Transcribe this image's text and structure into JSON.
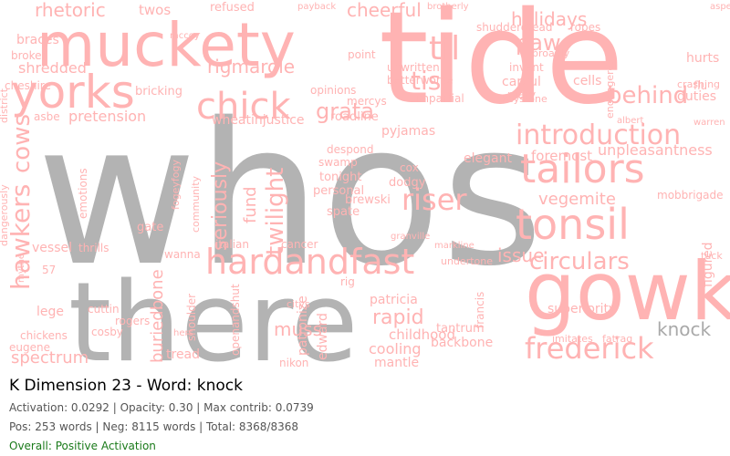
{
  "palette": {
    "positive": "#ffb3b3",
    "negative": "#b3b3b3",
    "highlight": "#a9a9a9"
  },
  "words": [
    {
      "t": "whos",
      "c": "neg"
    },
    {
      "t": "there",
      "c": "neg"
    },
    {
      "t": "tide",
      "c": "pos"
    },
    {
      "t": "gowk",
      "c": "pos"
    },
    {
      "t": "muckety",
      "c": "pos"
    },
    {
      "t": "yorks",
      "c": "pos"
    },
    {
      "t": "chick",
      "c": "pos"
    },
    {
      "t": "tailors",
      "c": "pos"
    },
    {
      "t": "tonsil",
      "c": "pos"
    },
    {
      "t": "hardandfast",
      "c": "pos"
    },
    {
      "t": "frederick",
      "c": "pos"
    },
    {
      "t": "knock",
      "c": "neg"
    },
    {
      "t": "introduction",
      "c": "pos"
    },
    {
      "t": "behind",
      "c": "pos"
    },
    {
      "t": "rhetoric",
      "c": "pos"
    },
    {
      "t": "cheerful",
      "c": "pos"
    },
    {
      "t": "twos",
      "c": "pos"
    },
    {
      "t": "refused",
      "c": "pos"
    },
    {
      "t": "holidays",
      "c": "pos"
    },
    {
      "t": "til",
      "c": "pos"
    },
    {
      "t": "paw",
      "c": "pos"
    },
    {
      "t": "shredded",
      "c": "pos"
    },
    {
      "t": "rigmarole",
      "c": "pos"
    },
    {
      "t": "tis",
      "c": "pos"
    },
    {
      "t": "grata",
      "c": "pos"
    },
    {
      "t": "vegemite",
      "c": "pos"
    },
    {
      "t": "circulars",
      "c": "pos"
    },
    {
      "t": "issue",
      "c": "pos"
    },
    {
      "t": "riser",
      "c": "pos"
    },
    {
      "t": "twilight",
      "c": "pos"
    },
    {
      "t": "seriously",
      "c": "pos"
    },
    {
      "t": "fund",
      "c": "pos"
    },
    {
      "t": "hawkers",
      "c": "pos"
    },
    {
      "t": "cows",
      "c": "pos"
    },
    {
      "t": "muss",
      "c": "pos"
    },
    {
      "t": "rapid",
      "c": "pos"
    },
    {
      "t": "buriedbone",
      "c": "pos"
    },
    {
      "t": "pretension",
      "c": "pos"
    },
    {
      "t": "bricking",
      "c": "pos"
    },
    {
      "t": "unwritten",
      "c": "pos"
    },
    {
      "t": "betterworse",
      "c": "pos"
    },
    {
      "t": "impartial",
      "c": "pos"
    },
    {
      "t": "mercys",
      "c": "pos"
    },
    {
      "t": "opinions",
      "c": "pos"
    },
    {
      "t": "roadline",
      "c": "pos"
    },
    {
      "t": "injustice",
      "c": "pos"
    },
    {
      "t": "wheat",
      "c": "pos"
    },
    {
      "t": "pyjamas",
      "c": "pos"
    },
    {
      "t": "foremost",
      "c": "pos"
    },
    {
      "t": "unpleasantness",
      "c": "pos"
    },
    {
      "t": "mobbrigade",
      "c": "pos"
    },
    {
      "t": "superiority",
      "c": "pos"
    },
    {
      "t": "childhood",
      "c": "pos"
    },
    {
      "t": "cooling",
      "c": "pos"
    },
    {
      "t": "mantle",
      "c": "pos"
    },
    {
      "t": "tantrum",
      "c": "pos"
    },
    {
      "t": "backbone",
      "c": "pos"
    },
    {
      "t": "cancer",
      "c": "pos"
    },
    {
      "t": "italian",
      "c": "pos"
    },
    {
      "t": "wanna",
      "c": "pos"
    },
    {
      "t": "gate",
      "c": "pos"
    },
    {
      "t": "emotions",
      "c": "pos"
    },
    {
      "t": "vessel",
      "c": "pos"
    },
    {
      "t": "thrills",
      "c": "pos"
    },
    {
      "t": "spectrum",
      "c": "pos"
    },
    {
      "t": "chickens",
      "c": "pos"
    },
    {
      "t": "lege",
      "c": "pos"
    },
    {
      "t": "cuttin",
      "c": "pos"
    },
    {
      "t": "rogers",
      "c": "pos"
    },
    {
      "t": "tread",
      "c": "pos"
    },
    {
      "t": "openandshut",
      "c": "pos"
    },
    {
      "t": "shoulder",
      "c": "pos"
    },
    {
      "t": "cosby",
      "c": "pos"
    },
    {
      "t": "eugene",
      "c": "pos"
    },
    {
      "t": "patronize",
      "c": "pos"
    },
    {
      "t": "edward",
      "c": "pos"
    },
    {
      "t": "patricia",
      "c": "pos"
    },
    {
      "t": "francis",
      "c": "pos"
    },
    {
      "t": "imitates",
      "c": "pos"
    },
    {
      "t": "fatrag",
      "c": "pos"
    },
    {
      "t": "figured",
      "c": "pos"
    },
    {
      "t": "duties",
      "c": "pos"
    },
    {
      "t": "crashing",
      "c": "pos"
    },
    {
      "t": "hurts",
      "c": "pos"
    },
    {
      "t": "elegant",
      "c": "pos"
    },
    {
      "t": "tonight",
      "c": "pos"
    },
    {
      "t": "personal",
      "c": "pos"
    },
    {
      "t": "brewski",
      "c": "pos"
    },
    {
      "t": "spate",
      "c": "pos"
    },
    {
      "t": "dodgy",
      "c": "pos"
    },
    {
      "t": "cox",
      "c": "pos"
    },
    {
      "t": "swamp",
      "c": "pos"
    },
    {
      "t": "despond",
      "c": "pos"
    },
    {
      "t": "granville",
      "c": "pos"
    },
    {
      "t": "markline",
      "c": "pos"
    },
    {
      "t": "undertone",
      "c": "pos"
    },
    {
      "t": "braces",
      "c": "pos"
    },
    {
      "t": "broker",
      "c": "pos"
    },
    {
      "t": "cheshire",
      "c": "pos"
    },
    {
      "t": "district",
      "c": "pos"
    },
    {
      "t": "mythe",
      "c": "pos"
    },
    {
      "t": "dangerously",
      "c": "pos"
    },
    {
      "t": "fogeyfogy",
      "c": "pos"
    },
    {
      "t": "community",
      "c": "pos"
    },
    {
      "t": "capful",
      "c": "pos"
    },
    {
      "t": "invent",
      "c": "pos"
    },
    {
      "t": "mary",
      "c": "pos"
    },
    {
      "t": "cells",
      "c": "pos"
    },
    {
      "t": "endangered",
      "c": "pos"
    },
    {
      "t": "keystone",
      "c": "pos"
    },
    {
      "t": "shudderdread",
      "c": "pos"
    },
    {
      "t": "ropes",
      "c": "pos"
    },
    {
      "t": "brotherly",
      "c": "pos"
    },
    {
      "t": "payback",
      "c": "pos"
    },
    {
      "t": "point",
      "c": "pos"
    },
    {
      "t": "mccoy",
      "c": "pos"
    },
    {
      "t": "broadly",
      "c": "pos"
    },
    {
      "t": "aspen",
      "c": "pos"
    },
    {
      "t": "albert",
      "c": "pos"
    },
    {
      "t": "warren",
      "c": "pos"
    },
    {
      "t": "asbe",
      "c": "pos"
    },
    {
      "t": "nikon",
      "c": "pos"
    },
    {
      "t": "citys",
      "c": "pos"
    },
    {
      "t": "hers",
      "c": "pos"
    },
    {
      "t": "tuck",
      "c": "pos"
    },
    {
      "t": "rig",
      "c": "pos"
    },
    {
      "t": "flu",
      "c": "pos"
    },
    {
      "t": "57",
      "c": "pos"
    }
  ],
  "panel": {
    "title": "K Dimension 23 - Word: knock",
    "line1": "Activation: 0.0292 | Opacity: 0.30 | Max contrib: 0.0739",
    "line2": "Pos: 253 words | Neg: 8115 words | Total: 8368/8368",
    "line3": "Overall: Positive Activation"
  }
}
